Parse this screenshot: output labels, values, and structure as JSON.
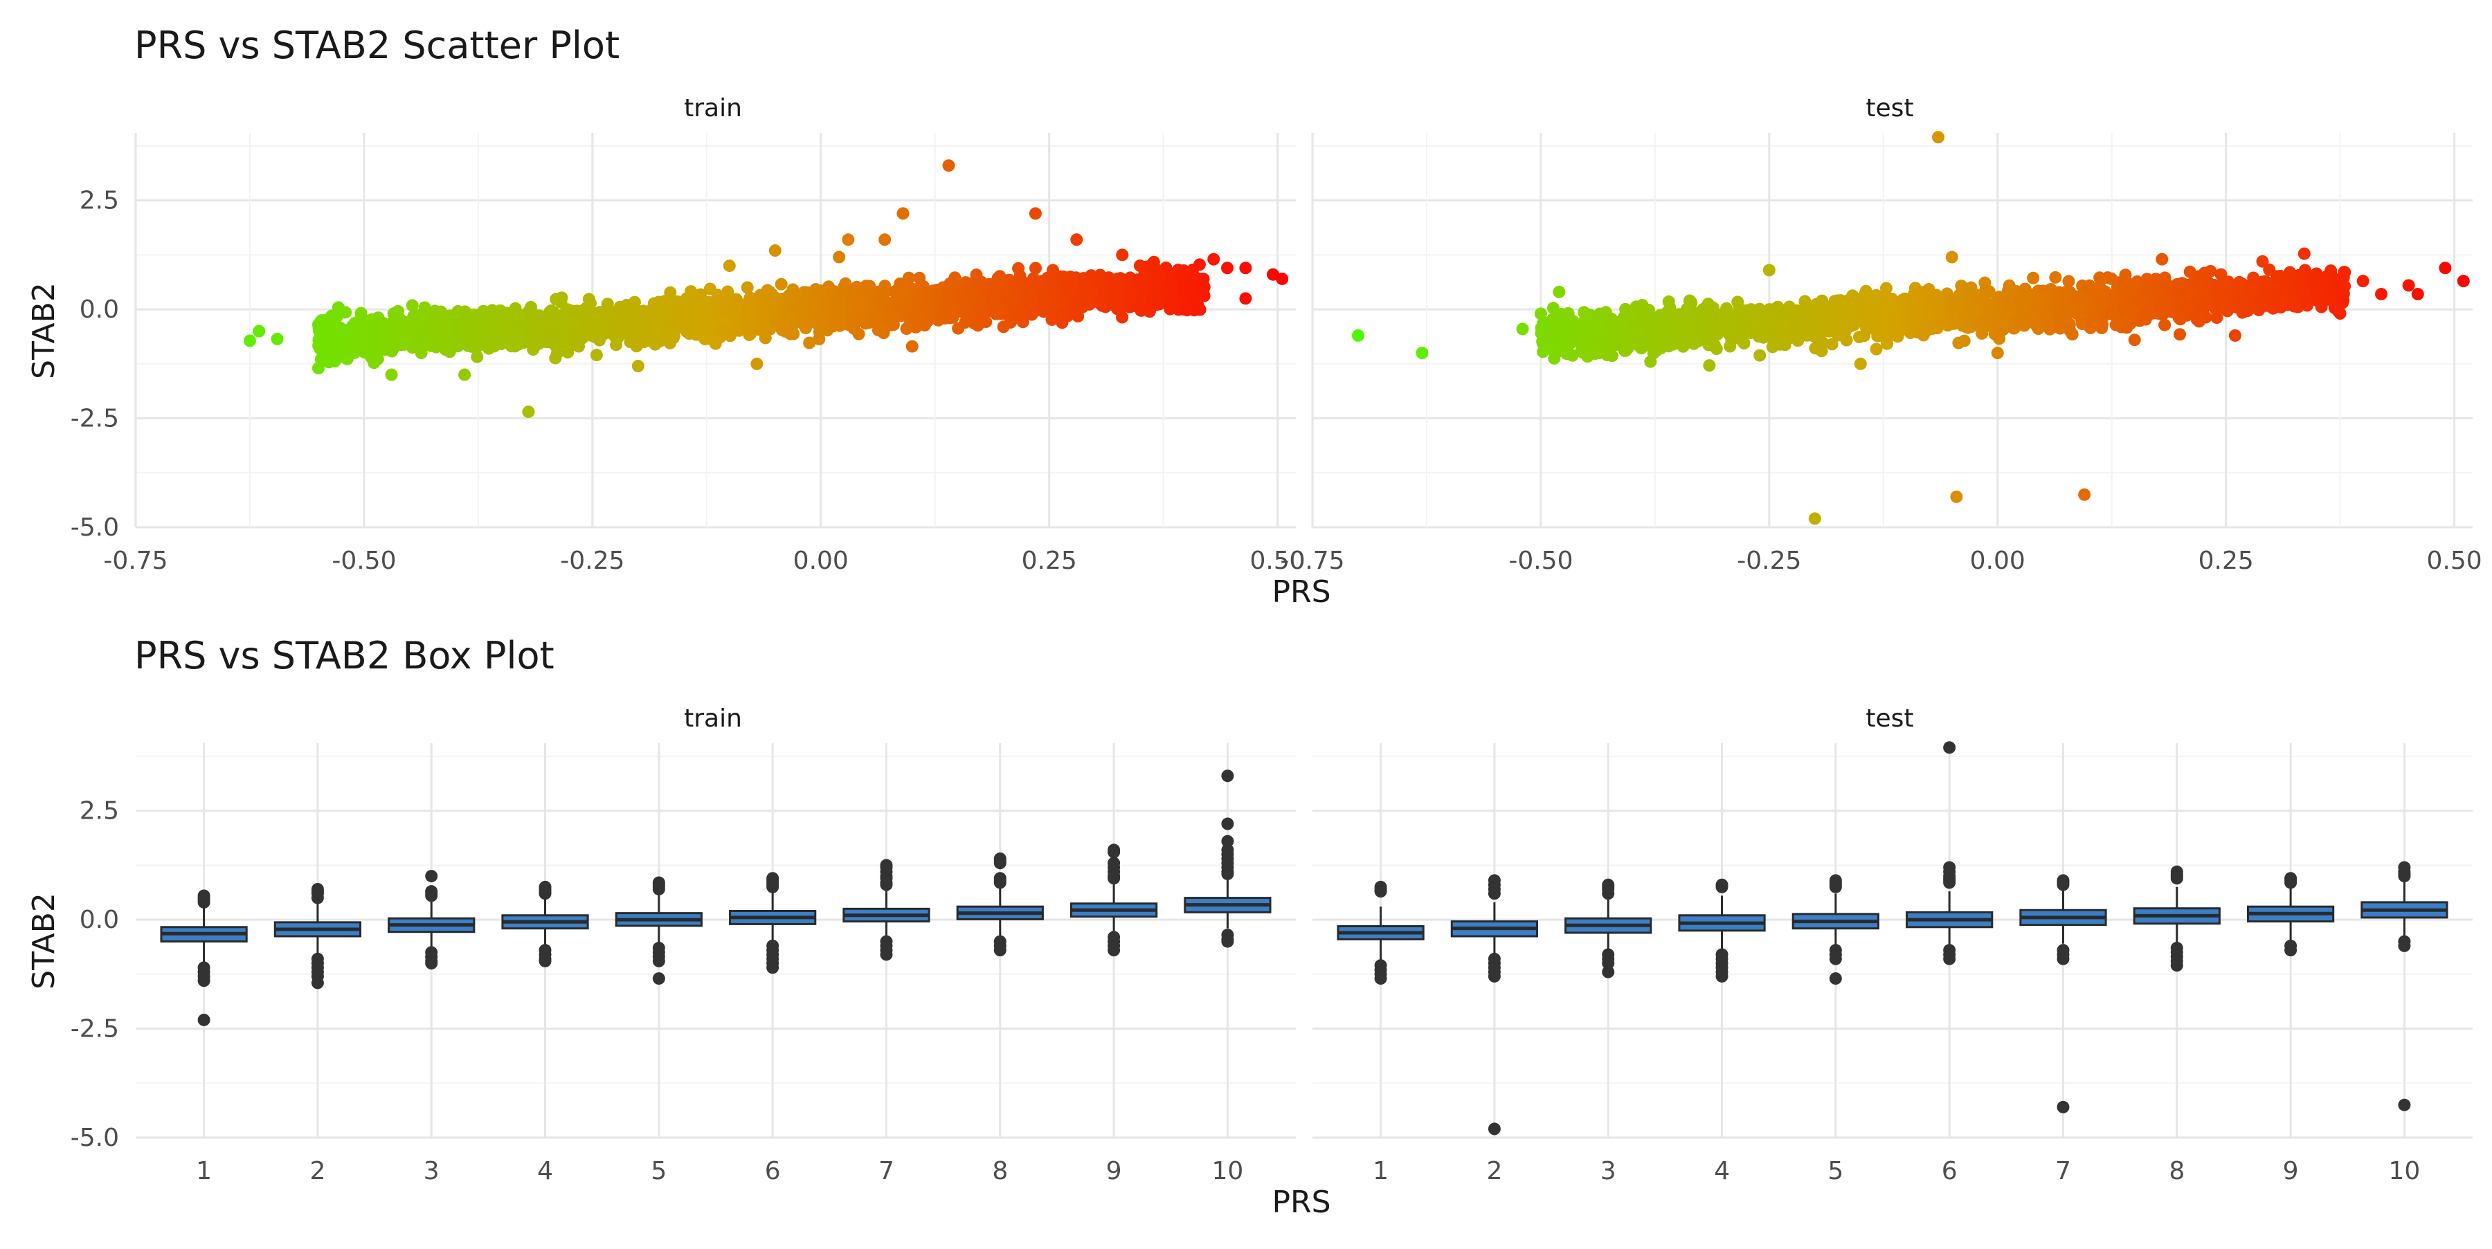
{
  "colors": {
    "grid_major": "#e6e6e6",
    "grid_minor": "#f3f3f3",
    "scatter_low": "#44ff00",
    "scatter_mid": "#d4a200",
    "scatter_high": "#ff0000",
    "box_fill": "#3a7fc8",
    "box_line": "#2a2a2a",
    "outlier": "#333333"
  },
  "chart_data": [
    {
      "type": "scatter",
      "title": "PRS vs STAB2 Scatter Plot",
      "xlabel": "PRS",
      "ylabel": "STAB2",
      "xlim": [
        -0.75,
        0.52
      ],
      "ylim": [
        -5.0,
        4.05
      ],
      "xticks": [
        -0.75,
        -0.5,
        -0.25,
        0.0,
        0.25,
        0.5
      ],
      "xtick_labels": [
        "-0.75",
        "-0.50",
        "-0.25",
        "0.00",
        "0.25",
        "0.50"
      ],
      "yticks": [
        -5.0,
        -2.5,
        0.0,
        2.5
      ],
      "ytick_labels": [
        "-5.0",
        "-2.5",
        "0.0",
        "2.5"
      ],
      "grid": true,
      "color_by": "PRS",
      "panels": [
        {
          "name": "train",
          "dense_band": {
            "x_range": [
              -0.55,
              0.42
            ],
            "slope": 1.25,
            "intercept": 0.0,
            "y_sd": 0.23,
            "n": 2600
          },
          "points": [
            [
              -0.625,
              -0.72
            ],
            [
              -0.615,
              -0.5
            ],
            [
              -0.595,
              -0.68
            ],
            [
              -0.55,
              -1.35
            ],
            [
              -0.545,
              -1.1
            ],
            [
              -0.55,
              -0.35
            ],
            [
              -0.47,
              -1.5
            ],
            [
              -0.39,
              -1.5
            ],
            [
              -0.32,
              -2.35
            ],
            [
              -0.1,
              1.0
            ],
            [
              -0.05,
              1.35
            ],
            [
              0.03,
              1.6
            ],
            [
              0.07,
              1.6
            ],
            [
              0.09,
              2.2
            ],
            [
              0.14,
              3.3
            ],
            [
              0.235,
              2.2
            ],
            [
              0.28,
              1.6
            ],
            [
              0.33,
              1.25
            ],
            [
              0.43,
              1.15
            ],
            [
              0.445,
              0.95
            ],
            [
              0.465,
              0.95
            ],
            [
              0.465,
              0.25
            ],
            [
              0.495,
              0.8
            ],
            [
              0.505,
              0.7
            ],
            [
              -0.07,
              -1.25
            ],
            [
              0.1,
              -0.85
            ],
            [
              0.2,
              -0.4
            ],
            [
              0.36,
              -0.05
            ],
            [
              -0.2,
              -1.3
            ],
            [
              0.02,
              1.2
            ]
          ]
        },
        {
          "name": "test",
          "dense_band": {
            "x_range": [
              -0.5,
              0.38
            ],
            "slope": 1.25,
            "intercept": 0.0,
            "y_sd": 0.23,
            "n": 2300
          },
          "points": [
            [
              -0.7,
              -0.6
            ],
            [
              -0.63,
              -1.0
            ],
            [
              -0.52,
              -0.45
            ],
            [
              -0.5,
              -0.1
            ],
            [
              -0.48,
              0.4
            ],
            [
              -0.065,
              3.95
            ],
            [
              -0.2,
              -4.8
            ],
            [
              -0.045,
              -4.3
            ],
            [
              0.095,
              -4.25
            ],
            [
              -0.25,
              0.9
            ],
            [
              -0.05,
              1.2
            ],
            [
              0.18,
              1.15
            ],
            [
              0.29,
              1.1
            ],
            [
              0.32,
              0.85
            ],
            [
              0.36,
              0.75
            ],
            [
              0.38,
              0.85
            ],
            [
              0.4,
              0.65
            ],
            [
              0.42,
              0.35
            ],
            [
              0.45,
              0.55
            ],
            [
              0.46,
              0.35
            ],
            [
              0.49,
              0.95
            ],
            [
              0.51,
              0.65
            ],
            [
              -0.15,
              -1.25
            ],
            [
              0.0,
              -1.0
            ],
            [
              0.15,
              -0.7
            ],
            [
              -0.38,
              -1.2
            ],
            [
              0.26,
              -0.6
            ]
          ]
        }
      ]
    },
    {
      "type": "box",
      "title": "PRS vs STAB2 Box Plot",
      "xlabel": "PRS",
      "ylabel": "STAB2",
      "categories": [
        "1",
        "2",
        "3",
        "4",
        "5",
        "6",
        "7",
        "8",
        "9",
        "10"
      ],
      "ylim": [
        -5.0,
        4.05
      ],
      "yticks": [
        -5.0,
        -2.5,
        0.0,
        2.5
      ],
      "ytick_labels": [
        "-5.0",
        "-2.5",
        "0.0",
        "2.5"
      ],
      "grid": true,
      "panels": [
        {
          "name": "train",
          "boxes": [
            {
              "q1": -0.5,
              "median": -0.32,
              "q3": -0.17,
              "lower": -1.0,
              "upper": 0.35,
              "outliers": [
                0.55,
                0.5,
                0.45,
                0.4,
                -1.1,
                -1.2,
                -1.3,
                -1.4,
                -2.3
              ]
            },
            {
              "q1": -0.38,
              "median": -0.22,
              "q3": -0.06,
              "lower": -0.85,
              "upper": 0.45,
              "outliers": [
                0.7,
                0.65,
                0.6,
                0.5,
                -0.9,
                -1.0,
                -1.1,
                -1.2,
                -1.3,
                -1.45
              ]
            },
            {
              "q1": -0.28,
              "median": -0.12,
              "q3": 0.03,
              "lower": -0.75,
              "upper": 0.5,
              "outliers": [
                1.0,
                0.65,
                0.6,
                0.55,
                -0.75,
                -0.85,
                -0.95,
                -1.0
              ]
            },
            {
              "q1": -0.2,
              "median": -0.05,
              "q3": 0.1,
              "lower": -0.65,
              "upper": 0.55,
              "outliers": [
                0.75,
                0.7,
                0.65,
                0.6,
                -0.7,
                -0.8,
                -0.9,
                -0.95
              ]
            },
            {
              "q1": -0.14,
              "median": 0.0,
              "q3": 0.15,
              "lower": -0.55,
              "upper": 0.6,
              "outliers": [
                0.85,
                0.8,
                0.75,
                0.7,
                -0.65,
                -0.75,
                -0.85,
                -0.95,
                -1.35
              ]
            },
            {
              "q1": -0.1,
              "median": 0.05,
              "q3": 0.2,
              "lower": -0.5,
              "upper": 0.65,
              "outliers": [
                0.95,
                0.9,
                0.85,
                0.8,
                0.75,
                -0.6,
                -0.7,
                -0.8,
                -0.9,
                -1.0,
                -1.1
              ]
            },
            {
              "q1": -0.04,
              "median": 0.1,
              "q3": 0.25,
              "lower": -0.45,
              "upper": 0.7,
              "outliers": [
                1.25,
                1.2,
                1.1,
                1.0,
                0.95,
                0.85,
                0.8,
                -0.5,
                -0.6,
                -0.7,
                -0.8
              ]
            },
            {
              "q1": 0.01,
              "median": 0.15,
              "q3": 0.3,
              "lower": -0.4,
              "upper": 0.75,
              "outliers": [
                1.4,
                1.35,
                1.3,
                0.95,
                0.9,
                0.85,
                -0.5,
                -0.6,
                -0.7
              ]
            },
            {
              "q1": 0.07,
              "median": 0.22,
              "q3": 0.37,
              "lower": -0.3,
              "upper": 0.85,
              "outliers": [
                1.6,
                1.55,
                1.3,
                1.2,
                1.1,
                1.0,
                0.95,
                -0.4,
                -0.5,
                -0.6,
                -0.7
              ]
            },
            {
              "q1": 0.17,
              "median": 0.34,
              "q3": 0.5,
              "lower": -0.2,
              "upper": 0.95,
              "outliers": [
                3.3,
                2.2,
                1.8,
                1.6,
                1.5,
                1.4,
                1.3,
                1.2,
                1.1,
                1.05,
                -0.35,
                -0.45,
                -0.5
              ]
            }
          ]
        },
        {
          "name": "test",
          "boxes": [
            {
              "q1": -0.45,
              "median": -0.3,
              "q3": -0.15,
              "lower": -0.95,
              "upper": 0.3,
              "outliers": [
                0.75,
                0.7,
                0.65,
                -1.05,
                -1.15,
                -1.25,
                -1.35
              ]
            },
            {
              "q1": -0.38,
              "median": -0.2,
              "q3": -0.04,
              "lower": -0.85,
              "upper": 0.4,
              "outliers": [
                0.9,
                0.8,
                0.7,
                0.6,
                -0.9,
                -1.0,
                -1.1,
                -1.2,
                -1.3,
                -4.8
              ]
            },
            {
              "q1": -0.3,
              "median": -0.13,
              "q3": 0.03,
              "lower": -0.75,
              "upper": 0.5,
              "outliers": [
                0.8,
                0.75,
                0.7,
                0.6,
                -0.8,
                -0.9,
                -1.0,
                -1.2
              ]
            },
            {
              "q1": -0.25,
              "median": -0.08,
              "q3": 0.1,
              "lower": -0.7,
              "upper": 0.55,
              "outliers": [
                0.8,
                0.75,
                -0.8,
                -0.9,
                -1.0,
                -1.1,
                -1.2,
                -1.3
              ]
            },
            {
              "q1": -0.2,
              "median": -0.04,
              "q3": 0.13,
              "lower": -0.65,
              "upper": 0.6,
              "outliers": [
                0.9,
                0.85,
                0.8,
                0.75,
                -0.7,
                -0.8,
                -0.9,
                -1.35
              ]
            },
            {
              "q1": -0.17,
              "median": 0.0,
              "q3": 0.17,
              "lower": -0.6,
              "upper": 0.65,
              "outliers": [
                3.95,
                1.2,
                1.1,
                1.0,
                0.95,
                0.9,
                0.85,
                -0.7,
                -0.8,
                -0.9
              ]
            },
            {
              "q1": -0.12,
              "median": 0.05,
              "q3": 0.22,
              "lower": -0.55,
              "upper": 0.7,
              "outliers": [
                0.9,
                0.85,
                0.8,
                -0.7,
                -0.8,
                -0.9,
                -4.3
              ]
            },
            {
              "q1": -0.09,
              "median": 0.09,
              "q3": 0.26,
              "lower": -0.55,
              "upper": 0.75,
              "outliers": [
                1.1,
                1.05,
                1.0,
                0.95,
                -0.65,
                -0.75,
                -0.85,
                -0.95,
                -1.05
              ]
            },
            {
              "q1": -0.04,
              "median": 0.14,
              "q3": 0.3,
              "lower": -0.5,
              "upper": 0.8,
              "outliers": [
                0.95,
                0.9,
                0.85,
                -0.6,
                -0.7
              ]
            },
            {
              "q1": 0.05,
              "median": 0.22,
              "q3": 0.4,
              "lower": -0.4,
              "upper": 0.9,
              "outliers": [
                1.2,
                1.1,
                1.05,
                1.0,
                -0.5,
                -0.6,
                -4.25
              ]
            }
          ]
        }
      ]
    }
  ]
}
